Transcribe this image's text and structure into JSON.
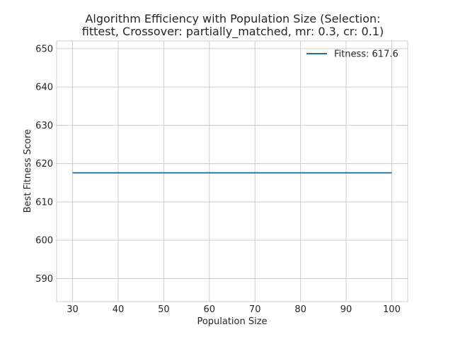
{
  "chart_data": {
    "type": "line",
    "title": "Algorithm Efficiency with Population Size (Selection: fittest, Crossover: partially_matched, mr: 0.3, cr: 0.1)",
    "title_lines": [
      "Algorithm Efficiency with Population Size (Selection:",
      "fittest, Crossover: partially_matched, mr: 0.3, cr: 0.1)"
    ],
    "xlabel": "Population Size",
    "ylabel": "Best Fitness Score",
    "xlim": [
      26.5,
      103.5
    ],
    "ylim": [
      584,
      652
    ],
    "xticks": [
      30,
      40,
      50,
      60,
      70,
      80,
      90,
      100
    ],
    "yticks": [
      590,
      600,
      610,
      620,
      630,
      640,
      650
    ],
    "grid": true,
    "legend_position": "top-right",
    "series": [
      {
        "name": "Fitness: 617.6",
        "color": "#1f6f9f",
        "x": [
          30,
          40,
          50,
          60,
          70,
          80,
          90,
          100
        ],
        "y": [
          617.6,
          617.6,
          617.6,
          617.6,
          617.6,
          617.6,
          617.6,
          617.6
        ]
      }
    ]
  }
}
